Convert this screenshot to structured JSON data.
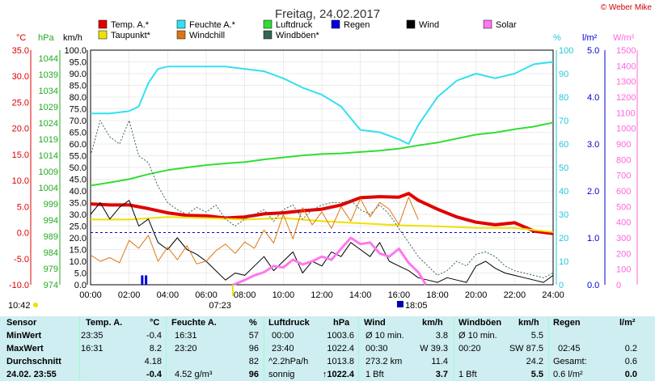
{
  "header": {
    "title": "Freitag, 24.02.2017",
    "credit": "© Weber Mike",
    "time_left": "10:42",
    "time_sunrise": "07:23",
    "time_sunset": "18:05"
  },
  "legend": [
    {
      "label": "Temp. A.*",
      "color": "#e00000"
    },
    {
      "label": "Feuchte A.*",
      "color": "#33e0f0"
    },
    {
      "label": "Luftdruck",
      "color": "#33dd33"
    },
    {
      "label": "Regen",
      "color": "#0000dd"
    },
    {
      "label": "Wind",
      "color": "#000000"
    },
    {
      "label": "Solar",
      "color": "#ff77ee"
    },
    {
      "label": "Taupunkt*",
      "color": "#f0e000"
    },
    {
      "label": "Windchill",
      "color": "#dd7711"
    },
    {
      "label": "Windböen*",
      "color": "#336655"
    }
  ],
  "units": {
    "temp": "°C",
    "pressure": "hPa",
    "wind": "km/h",
    "humidity": "%",
    "rain": "l/m²",
    "solar": "W/m²"
  },
  "axes": {
    "temp_ticks": [
      "35.0",
      "30.0",
      "25.0",
      "20.0",
      "15.0",
      "10.0",
      "5.0",
      "0.0",
      "-5.0",
      "-10.0"
    ],
    "pressure_ticks": [
      "1044",
      "1039",
      "1034",
      "1029",
      "1024",
      "1019",
      "1014",
      "1009",
      "1004",
      "999",
      "994",
      "989",
      "984",
      "979",
      "974"
    ],
    "wind_ticks": [
      "100.0",
      "95.0",
      "90.0",
      "85.0",
      "80.0",
      "75.0",
      "70.0",
      "65.0",
      "60.0",
      "55.0",
      "50.0",
      "45.0",
      "40.0",
      "35.0",
      "30.0",
      "25.0",
      "20.0",
      "15.0",
      "10.0",
      "5.0",
      "0.0"
    ],
    "humidity_ticks": [
      "100",
      "90",
      "80",
      "70",
      "60",
      "50",
      "40",
      "30",
      "20",
      "10",
      "0"
    ],
    "rain_ticks": [
      "5.0",
      "4.0",
      "3.0",
      "2.0",
      "1.0",
      "0.0"
    ],
    "solar_ticks": [
      "1500",
      "1400",
      "1300",
      "1200",
      "1100",
      "1000",
      "900",
      "800",
      "700",
      "600",
      "500",
      "400",
      "300",
      "200",
      "100",
      "0"
    ],
    "x_ticks": [
      "00:00",
      "02:00",
      "04:00",
      "06:00",
      "08:00",
      "10:00",
      "12:00",
      "14:00",
      "16:00",
      "18:00",
      "20:00",
      "22:00",
      "24:00"
    ]
  },
  "chart_data": {
    "type": "line",
    "x_unit": "hour of day",
    "xlim": [
      0,
      24
    ],
    "series": [
      {
        "name": "Temp. A.*",
        "unit": "°C",
        "color": "#e00000",
        "x": [
          0,
          1,
          2,
          3,
          4,
          5,
          6,
          7,
          8,
          9,
          10,
          11,
          12,
          13,
          14,
          15,
          16,
          16.5,
          17,
          18,
          19,
          20,
          21,
          22,
          23,
          24
        ],
        "y": [
          5.5,
          5.3,
          5.3,
          4.6,
          3.8,
          3.3,
          3.2,
          2.8,
          3.0,
          3.6,
          3.8,
          4.2,
          4.5,
          5.3,
          6.7,
          6.9,
          6.8,
          7.5,
          6.2,
          4.5,
          3.0,
          2.0,
          1.5,
          1.9,
          0.3,
          -0.2
        ]
      },
      {
        "name": "Taupunkt*",
        "unit": "°C",
        "color": "#f0e000",
        "x": [
          0,
          2,
          4,
          6,
          8,
          10,
          12,
          14,
          16,
          18,
          20,
          22,
          24
        ],
        "y": [
          2.5,
          2.5,
          3.0,
          2.8,
          2.5,
          2.8,
          2.2,
          1.8,
          1.4,
          1.2,
          0.9,
          0.9,
          0.1
        ]
      },
      {
        "name": "Feuchte A.*",
        "unit": "%",
        "color": "#33e0f0",
        "x": [
          0,
          1,
          2,
          2.5,
          3,
          3.5,
          4,
          5,
          6,
          7,
          8,
          9,
          10,
          11,
          12,
          13,
          14,
          15,
          16,
          16.5,
          17,
          18,
          19,
          20,
          21,
          22,
          23,
          24
        ],
        "y": [
          73,
          73,
          74,
          76,
          86,
          92,
          93,
          93,
          93,
          93,
          92,
          91,
          88,
          84,
          81,
          76,
          66,
          65,
          62,
          60,
          68,
          80,
          87,
          90,
          88,
          90,
          94,
          95
        ]
      },
      {
        "name": "Luftdruck",
        "unit": "hPa",
        "color": "#33dd33",
        "x": [
          0,
          1,
          2,
          3,
          4,
          5,
          6,
          7,
          8,
          9,
          10,
          11,
          12,
          13,
          14,
          15,
          16,
          17,
          18,
          19,
          20,
          21,
          22,
          23,
          24
        ],
        "y": [
          1003.6,
          1004.5,
          1005.5,
          1007.0,
          1008.2,
          1009.0,
          1009.7,
          1010.2,
          1010.6,
          1011.4,
          1012.0,
          1012.6,
          1013.0,
          1013.2,
          1013.6,
          1014.0,
          1014.6,
          1015.6,
          1016.4,
          1017.6,
          1018.8,
          1019.4,
          1020.4,
          1021.2,
          1022.4
        ]
      },
      {
        "name": "Wind",
        "unit": "km/h",
        "color": "#000000",
        "x": [
          0,
          0.5,
          1,
          1.5,
          2,
          2.5,
          3,
          3.5,
          4,
          4.5,
          5,
          5.5,
          6,
          6.5,
          7,
          7.5,
          8,
          8.5,
          9,
          9.5,
          10,
          10.5,
          11,
          11.5,
          12,
          12.5,
          13,
          13.5,
          14,
          14.5,
          15,
          15.5,
          16,
          16.5,
          17,
          17.5,
          18,
          18.5,
          19,
          19.5,
          20,
          20.5,
          21,
          21.5,
          22,
          22.5,
          23,
          23.5,
          24
        ],
        "y": [
          30,
          35,
          28,
          33,
          36,
          25,
          28,
          18,
          15,
          20,
          15,
          13,
          10,
          6,
          2,
          5,
          4,
          8,
          12,
          6,
          10,
          14,
          5,
          10,
          8,
          14,
          12,
          18,
          15,
          12,
          18,
          10,
          8,
          6,
          3,
          2,
          1,
          3,
          2,
          1,
          8,
          10,
          7,
          5,
          4,
          3,
          2,
          1,
          4
        ]
      },
      {
        "name": "Windböen*",
        "unit": "km/h",
        "color": "#336655",
        "x": [
          0,
          0.5,
          1,
          1.5,
          2,
          2.5,
          3,
          3.5,
          4,
          4.5,
          5,
          5.5,
          6,
          6.5,
          7,
          7.5,
          8,
          8.5,
          9,
          9.5,
          10,
          10.5,
          11,
          11.5,
          12,
          12.5,
          13,
          13.5,
          14,
          14.5,
          15,
          15.5,
          16,
          16.5,
          17,
          17.5,
          18,
          18.5,
          19,
          19.5,
          20,
          20.5,
          21,
          21.5,
          22,
          22.5,
          23,
          23.5,
          24
        ],
        "y": [
          55,
          70,
          63,
          60,
          70,
          55,
          52,
          42,
          35,
          32,
          30,
          33,
          31,
          34,
          28,
          25,
          28,
          30,
          32,
          27,
          32,
          34,
          28,
          32,
          34,
          35,
          35,
          36,
          32,
          30,
          34,
          30,
          24,
          18,
          12,
          8,
          4,
          6,
          10,
          8,
          13,
          14,
          12,
          8,
          6,
          5,
          4,
          3,
          5
        ]
      },
      {
        "name": "Windchill",
        "unit": "°C",
        "color": "#dd7711",
        "x": [
          0,
          0.5,
          1,
          1.5,
          2,
          2.5,
          3,
          3.5,
          4,
          4.5,
          5,
          5.5,
          6,
          6.5,
          7,
          7.5,
          8,
          8.5,
          9,
          9.5,
          10,
          10.5,
          11,
          11.5,
          12,
          12.5,
          13,
          13.5,
          14,
          14.5,
          15,
          15.5,
          16,
          16.5,
          17
        ],
        "y": [
          -4.3,
          -5.5,
          -4.8,
          -5.8,
          -1.5,
          -3.0,
          -0.5,
          -5.5,
          -2.8,
          -5.2,
          -2.5,
          -6.0,
          -5.5,
          -3.5,
          -2.2,
          -4.0,
          -1.8,
          -3.0,
          0.5,
          -2.0,
          3.5,
          -1.2,
          4.8,
          1.5,
          4.0,
          0.8,
          5.0,
          2.2,
          6.5,
          3.0,
          5.8,
          4.5,
          1.5,
          6.8,
          2.5
        ]
      },
      {
        "name": "Solar",
        "unit": "W/m²",
        "color": "#ff77ee",
        "x": [
          7.4,
          8,
          8.5,
          9,
          9.5,
          10,
          10.5,
          11,
          11.5,
          12,
          12.5,
          13,
          13.5,
          14,
          14.5,
          15,
          15.5,
          16,
          16.5,
          17,
          17.4
        ],
        "y": [
          0,
          30,
          60,
          80,
          120,
          110,
          160,
          130,
          150,
          180,
          160,
          230,
          300,
          260,
          270,
          200,
          180,
          230,
          140,
          80,
          0
        ]
      },
      {
        "name": "Regen",
        "unit": "l/m²",
        "color": "#0000dd",
        "x": [
          2.7,
          2.9
        ],
        "y": [
          0.2,
          0.2
        ]
      }
    ]
  },
  "stats": {
    "headers": {
      "sensor": "Sensor",
      "temp": "Temp. A.",
      "temp_unit": "°C",
      "hum": "Feuchte A.",
      "hum_unit": "%",
      "press": "Luftdruck",
      "press_unit": "hPa",
      "wind": "Wind",
      "wind_unit": "km/h",
      "gust": "Windböen",
      "gust_unit": "km/h",
      "rain": "Regen",
      "rain_unit": "l/m²"
    },
    "labels": {
      "min": "MinWert",
      "max": "MaxWert",
      "avg": "Durchschnitt",
      "now": "24.02. 23:55"
    },
    "temp": {
      "min_time": "23:35",
      "min_val": "-0.4",
      "max_time": "16:31",
      "max_val": "8.2",
      "avg": "4.18",
      "now": "-0.4"
    },
    "hum": {
      "min_time": "16:31",
      "min_val": "57",
      "max_time": "23:20",
      "max_val": "96",
      "avg": "82",
      "now_extra": "4.52 g/m³",
      "now": "96"
    },
    "press": {
      "min_time": "00:00",
      "min_val": "1003.6",
      "max_time": "23:40",
      "max_val": "1022.4",
      "trend": "^2.2hPa/h",
      "avg": "1013.8",
      "now_extra": "sonnig",
      "now": "↑1022.4"
    },
    "wind": {
      "min_label": "Ø 10 min.",
      "min_val": "3.8",
      "max_time": "00:30",
      "max_dir": "W 39.3",
      "avg_label": "273.2 km",
      "avg": "11.4",
      "now_extra": "1 Bft",
      "now": "3.7"
    },
    "gust": {
      "min_label": "Ø 10 min.",
      "min_val": "5.5",
      "max_time": "00:20",
      "max_dir": "SW 87.5",
      "avg": "24.2",
      "now_extra": "1 Bft",
      "now": "5.5"
    },
    "rain": {
      "max_time": "02:45",
      "max_val": "0.2",
      "avg_label": "Gesamt:",
      "avg": "0.6",
      "now_extra": "0.6 l/m²",
      "now": "0.0"
    }
  }
}
